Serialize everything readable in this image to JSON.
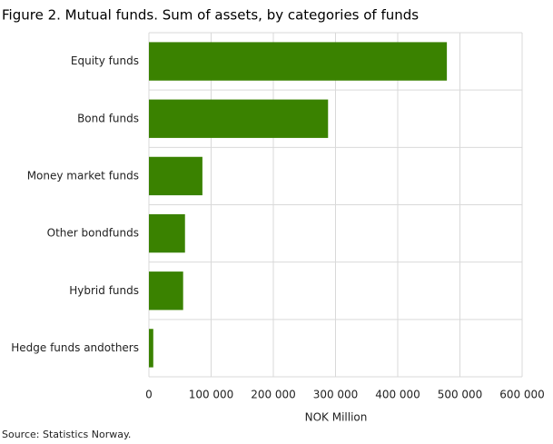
{
  "chart_data": {
    "type": "hbar",
    "title": "Figure 2. Mutual funds. Sum of assets, by categories of funds",
    "categories": [
      "Equity funds",
      "Bond funds",
      "Money market funds",
      "Other bondfunds",
      "Hybrid funds",
      "Hedge funds andothers"
    ],
    "values": [
      479000,
      288000,
      86000,
      58000,
      55000,
      7000
    ],
    "color": "#3a8200",
    "xlim": [
      0,
      600000
    ],
    "xticks": [
      0,
      {
        "value": 100000,
        "label": "100 000"
      },
      {
        "value": 200000,
        "label": "200 000"
      },
      {
        "value": 300000,
        "label": "300 000"
      },
      {
        "value": 400000,
        "label": "400 000"
      },
      {
        "value": 500000,
        "label": "500 000"
      },
      {
        "value": 600000,
        "label": "600 000"
      }
    ],
    "xlabel": "NOK Million",
    "source": "Source: Statistics Norway.",
    "grid": true
  }
}
